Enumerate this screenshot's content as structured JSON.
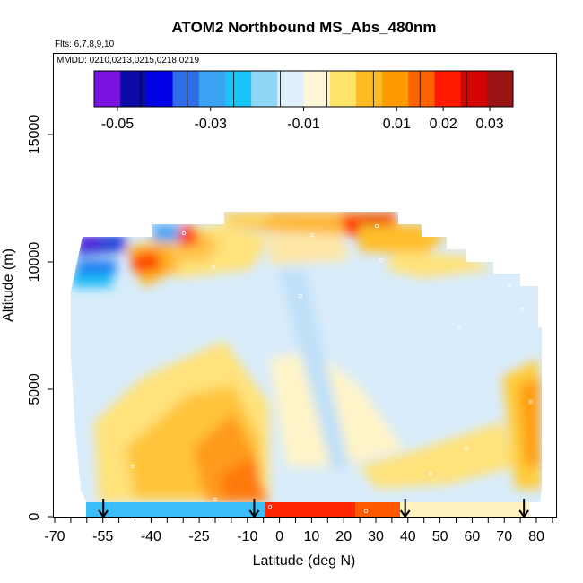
{
  "chart_data": {
    "type": "heatmap",
    "title": "ATOM2 Northbound MS_Abs_480nm",
    "flights_text": "Flts: 6,7,8,9,10",
    "dates_text": "MMDD: 0210,0213,0215,0218,0219",
    "xlabel": "Latitude (deg N)",
    "ylabel": "Altitude (m)",
    "xlim": [
      -70,
      85
    ],
    "ylim": [
      0,
      17500
    ],
    "x_tick_labels": [
      "-70",
      "-55",
      "-40",
      "-25",
      "-10",
      "0",
      "10",
      "20",
      "30",
      "40",
      "50",
      "60",
      "70",
      "80"
    ],
    "x_tick_values": [
      -70,
      -55,
      -40,
      -25,
      -10,
      0,
      10,
      20,
      30,
      40,
      50,
      60,
      70,
      80
    ],
    "y_ticks": [
      0,
      5000,
      10000,
      15000
    ],
    "y_tick_labels": [
      "0",
      "5000",
      "10000",
      "15000"
    ],
    "colorbar": {
      "colors": [
        "#7a12e0",
        "#0b0ba8",
        "#0000e6",
        "#2f6de6",
        "#3aa2f2",
        "#19c4f8",
        "#8fd7f6",
        "#dff0fa",
        "#fff6d8",
        "#ffe46a",
        "#ffbb22",
        "#ff9a00",
        "#ff6400",
        "#ff1a00",
        "#d40404",
        "#9a1414"
      ],
      "tick_labels": [
        "-0.05",
        "-0.03",
        "-0.01",
        "0.01",
        "0.02",
        "0.03"
      ],
      "tick_values": [
        -0.05,
        -0.03,
        -0.01,
        0.01,
        0.02,
        0.03
      ],
      "range": [
        -0.055,
        0.035
      ]
    },
    "profile_latitudes": [
      -55,
      -8,
      39,
      76
    ]
  }
}
